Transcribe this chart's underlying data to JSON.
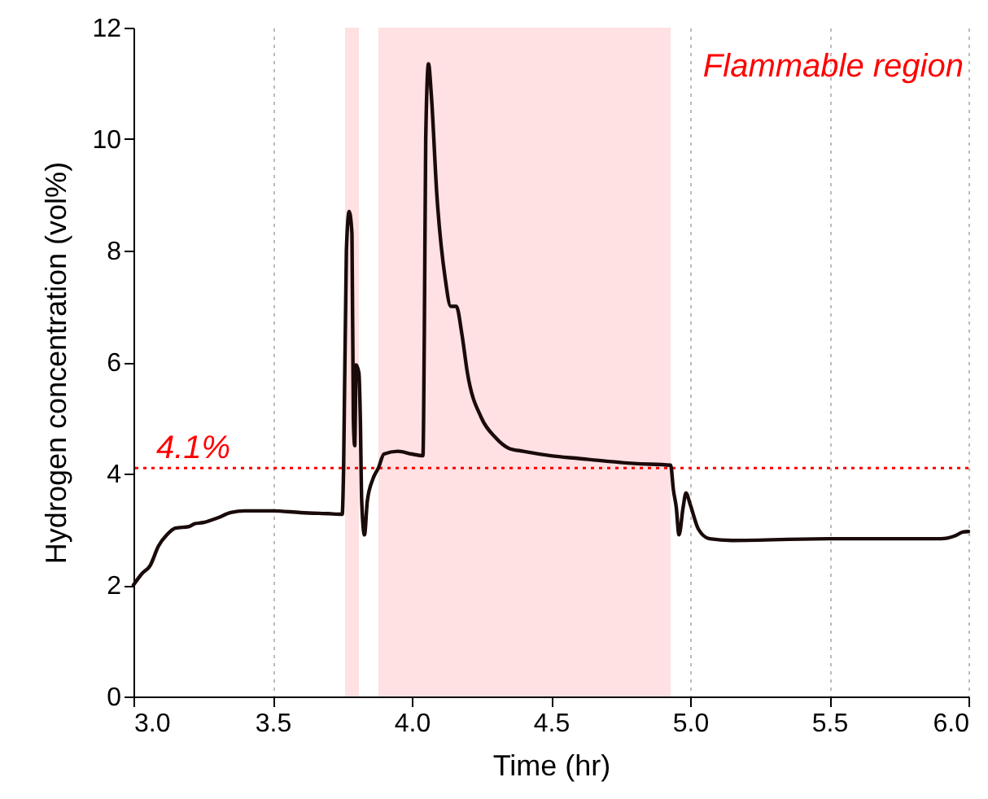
{
  "chart_data": {
    "type": "line",
    "xlabel": "Time (hr)",
    "ylabel": "Hydrogen concentration (vol%)",
    "xlim": [
      3.0,
      6.0
    ],
    "xticks": [
      {
        "value": 3,
        "label": "3.0"
      },
      3.5,
      {
        "value": 4,
        "label": "4.0"
      },
      4.5,
      {
        "value": 5,
        "label": "5.0"
      },
      5.5,
      {
        "value": 6,
        "label": "6.0"
      }
    ],
    "ylim": [
      0,
      12
    ],
    "yticks": [
      0,
      2,
      4,
      6,
      8,
      10,
      12
    ],
    "grid": "x",
    "annotations": [
      "Flammable region"
    ],
    "ref_lines": [
      {
        "axis": "y",
        "value": 4.1,
        "label": "4.1%",
        "color": "#ff0000",
        "line_style": "dotted"
      }
    ],
    "bands": [
      {
        "axis": "x",
        "from": 3.76,
        "to": 3.81,
        "color": "#ffe1e3"
      },
      {
        "axis": "x",
        "from": 3.88,
        "to": 4.93,
        "color": "#ffe1e3"
      }
    ],
    "series": [
      {
        "color": "#1a0a0a",
        "x": [
          3.0,
          3.03,
          3.06,
          3.09,
          3.12,
          3.15,
          3.2,
          3.22,
          3.25,
          3.3,
          3.35,
          3.4,
          3.5,
          3.6,
          3.7,
          3.75,
          3.755,
          3.765,
          3.775,
          3.785,
          3.79,
          3.795,
          3.8,
          3.81,
          3.815,
          3.82,
          3.83,
          3.84,
          3.86,
          3.88,
          3.9,
          3.95,
          4.0,
          4.04,
          4.045,
          4.05,
          4.06,
          4.07,
          4.09,
          4.12,
          4.14,
          4.16,
          4.18,
          4.2,
          4.25,
          4.3,
          4.35,
          4.4,
          4.5,
          4.6,
          4.7,
          4.8,
          4.93,
          4.94,
          4.95,
          4.96,
          4.975,
          4.985,
          5.0,
          5.03,
          5.07,
          5.15,
          5.5,
          5.9,
          5.95,
          5.98,
          6.0
        ],
        "values": [
          2.0,
          2.2,
          2.35,
          2.7,
          2.9,
          3.02,
          3.05,
          3.1,
          3.12,
          3.2,
          3.3,
          3.33,
          3.33,
          3.3,
          3.28,
          3.27,
          4.1,
          8.0,
          8.7,
          8.3,
          5.0,
          4.5,
          5.95,
          5.8,
          5.0,
          3.5,
          2.9,
          3.5,
          3.9,
          4.1,
          4.35,
          4.4,
          4.35,
          4.32,
          6.5,
          10.0,
          11.35,
          10.8,
          9.0,
          7.5,
          7.0,
          7.0,
          6.5,
          5.8,
          5.0,
          4.65,
          4.45,
          4.4,
          4.32,
          4.27,
          4.22,
          4.18,
          4.15,
          3.7,
          3.4,
          2.9,
          3.4,
          3.65,
          3.45,
          3.0,
          2.83,
          2.8,
          2.83,
          2.83,
          2.88,
          2.95,
          2.96
        ]
      }
    ]
  }
}
